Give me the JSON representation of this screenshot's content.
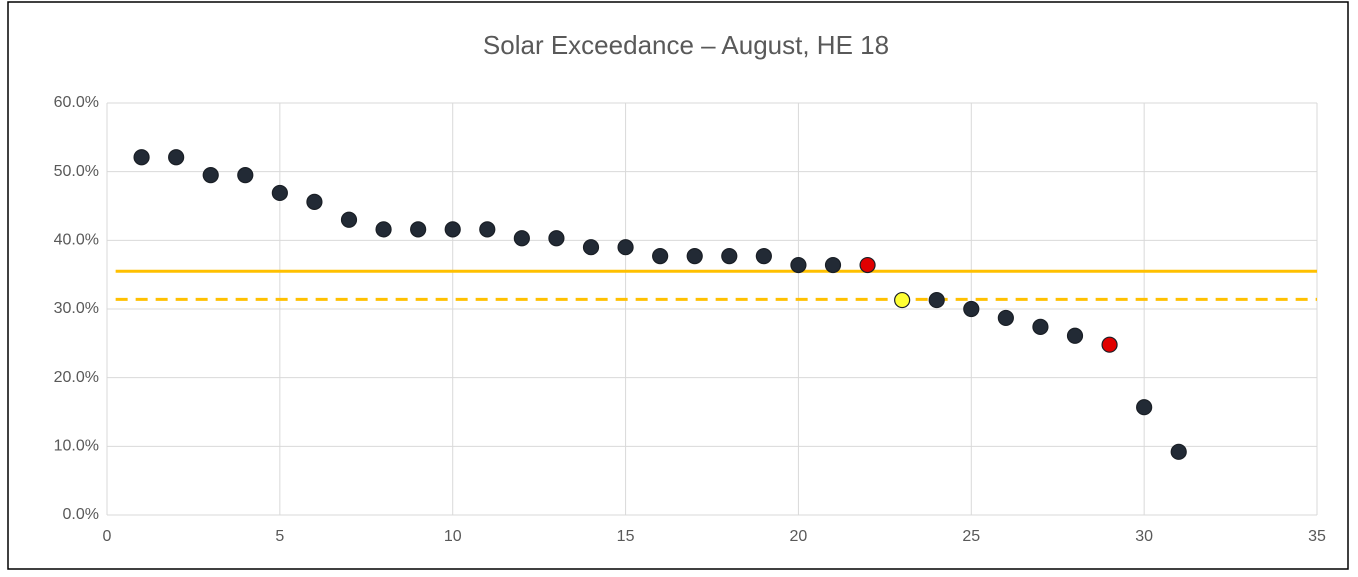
{
  "chart_data": {
    "type": "scatter",
    "title": "Solar Exceedance – August, HE 18",
    "series": [
      {
        "kind": "scatter",
        "color": "#222a35",
        "x": [
          1,
          2,
          3,
          4,
          5,
          6,
          7,
          8,
          9,
          10,
          11,
          12,
          13,
          14,
          15,
          16,
          17,
          18,
          19,
          20,
          21,
          24,
          25,
          26,
          27,
          28,
          30,
          31
        ],
        "values": [
          52.1,
          52.1,
          49.5,
          49.5,
          46.9,
          45.6,
          43.0,
          41.6,
          41.6,
          41.6,
          41.6,
          40.3,
          40.3,
          39.0,
          39.0,
          37.7,
          37.7,
          37.7,
          37.7,
          36.4,
          36.4,
          31.3,
          30.0,
          28.7,
          27.4,
          26.1,
          15.7,
          9.2
        ]
      },
      {
        "kind": "scatter",
        "color": "#e00000",
        "x": [
          22,
          29
        ],
        "values": [
          36.4,
          24.8
        ]
      },
      {
        "kind": "scatter",
        "color": "#ffff33",
        "x": [
          23
        ],
        "values": [
          31.3
        ]
      },
      {
        "kind": "line",
        "color": "#ffc000",
        "dashed": false,
        "x": [
          0.25,
          35
        ],
        "values": [
          35.5,
          35.5
        ]
      },
      {
        "kind": "line",
        "color": "#ffc000",
        "dashed": true,
        "x": [
          0.25,
          35
        ],
        "values": [
          31.4,
          31.4
        ]
      }
    ],
    "xlim": [
      0,
      35
    ],
    "xticks": [
      0,
      5,
      10,
      15,
      20,
      25,
      30,
      35
    ],
    "ylim": [
      0,
      60
    ],
    "yticks": [
      {
        "value": 0,
        "label": "0.0%"
      },
      {
        "value": 10,
        "label": "10.0%"
      },
      {
        "value": 20,
        "label": "20.0%"
      },
      {
        "value": 30,
        "label": "30.0%"
      },
      {
        "value": 40,
        "label": "40.0%"
      },
      {
        "value": 50,
        "label": "50.0%"
      },
      {
        "value": 60,
        "label": "60.0%"
      }
    ],
    "grid": true
  }
}
